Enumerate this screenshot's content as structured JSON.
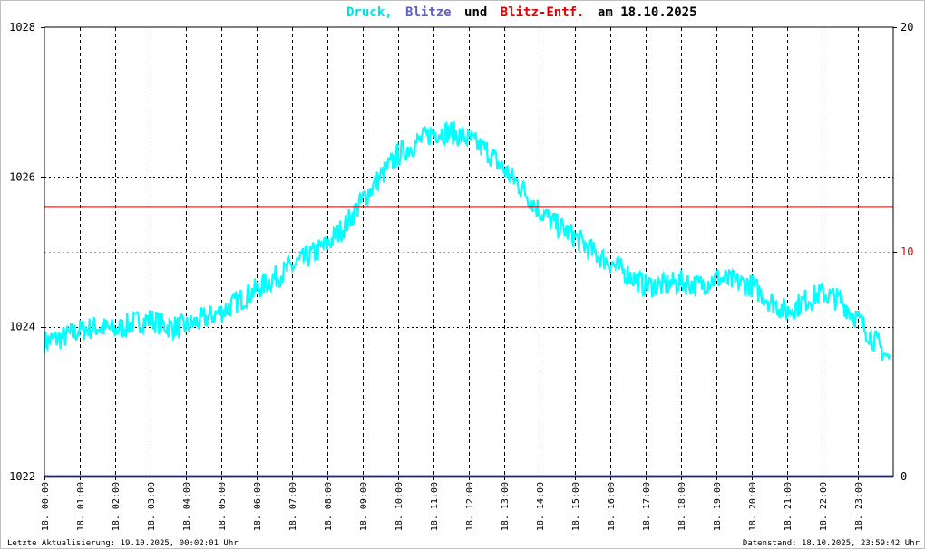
{
  "title": {
    "part1": "Druck,",
    "part2": "Blitze",
    "part3": "und",
    "part4": "Blitz-Entf.",
    "part5": "am 18.10.2025"
  },
  "footer": {
    "left": "Letzte Aktualisierung: 19.10.2025, 00:02:01 Uhr",
    "right": "Datenstand: 18.10.2025, 23:59:42 Uhr"
  },
  "colors": {
    "pressure": "#00ffff",
    "lightning": "#5050b0",
    "distance": "#e00000",
    "title_pressure": "#00e0e0",
    "title_lightning": "#6060c0",
    "title_distance": "#e00000",
    "right_axis_zero": "#000000",
    "right_axis_10": "#e00000",
    "right_axis_20": "#000000"
  },
  "chart_data": {
    "type": "line",
    "x_unit": "hour of day",
    "xlim": [
      0,
      24
    ],
    "ylim_left": [
      1022,
      1028
    ],
    "ylim_right": [
      0,
      20
    ],
    "left_ticks": [
      "1022",
      "1024",
      "1026",
      "1028"
    ],
    "right_ticks": [
      "0",
      "10",
      "20"
    ],
    "x_ticks": [
      "18. 00:00",
      "18. 01:00",
      "18. 02:00",
      "18. 03:00",
      "18. 04:00",
      "18. 05:00",
      "18. 06:00",
      "18. 07:00",
      "18. 08:00",
      "18. 09:00",
      "18. 10:00",
      "18. 11:00",
      "18. 12:00",
      "18. 13:00",
      "18. 14:00",
      "18. 15:00",
      "18. 16:00",
      "18. 17:00",
      "18. 18:00",
      "18. 19:00",
      "18. 20:00",
      "18. 21:00",
      "18. 22:00",
      "18. 23:00"
    ],
    "grid": true,
    "series": [
      {
        "key": "pressure",
        "axis": "left",
        "x": [
          0,
          0.5,
          1,
          1.5,
          2,
          2.5,
          3,
          3.5,
          4,
          4.5,
          5,
          5.5,
          6,
          6.5,
          7,
          7.5,
          8,
          8.5,
          9,
          9.5,
          10,
          10.5,
          11,
          11.5,
          12,
          12.5,
          13,
          13.5,
          14,
          14.5,
          15,
          15.5,
          16,
          16.5,
          17,
          17.5,
          18,
          18.5,
          19,
          19.5,
          20,
          20.5,
          21,
          21.5,
          22,
          22.5,
          23,
          23.5,
          23.9
        ],
        "y": [
          1023.8,
          1023.85,
          1023.95,
          1024.0,
          1023.95,
          1024.05,
          1024.1,
          1024.0,
          1024.0,
          1024.1,
          1024.2,
          1024.35,
          1024.5,
          1024.65,
          1024.8,
          1024.95,
          1025.1,
          1025.35,
          1025.7,
          1026.0,
          1026.3,
          1026.45,
          1026.6,
          1026.6,
          1026.5,
          1026.35,
          1026.1,
          1025.85,
          1025.55,
          1025.35,
          1025.2,
          1025.0,
          1024.85,
          1024.7,
          1024.55,
          1024.55,
          1024.6,
          1024.55,
          1024.65,
          1024.6,
          1024.55,
          1024.35,
          1024.2,
          1024.35,
          1024.45,
          1024.35,
          1024.1,
          1023.8,
          1023.55
        ]
      },
      {
        "key": "lightning",
        "axis": "right",
        "x": [
          0,
          24
        ],
        "y": [
          0,
          0
        ]
      },
      {
        "key": "distance",
        "axis": "right",
        "x": [
          0,
          24
        ],
        "y": [
          12,
          12
        ]
      }
    ]
  }
}
